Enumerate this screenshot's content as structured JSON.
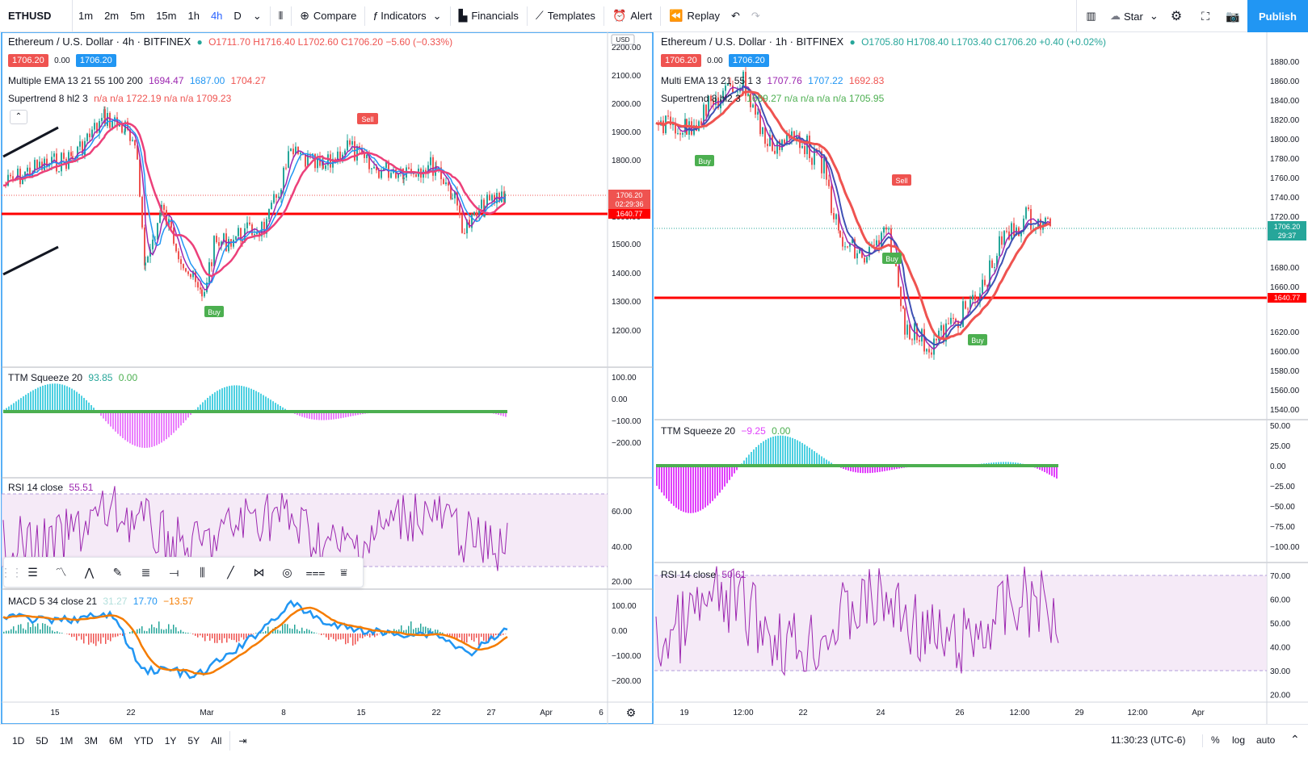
{
  "toolbar": {
    "symbol": "ETHUSD",
    "intervals": [
      "1m",
      "2m",
      "5m",
      "15m",
      "1h",
      "4h",
      "D"
    ],
    "active_interval": "4h",
    "compare": "Compare",
    "indicators": "Indicators",
    "financials": "Financials",
    "templates": "Templates",
    "alert": "Alert",
    "replay": "Replay",
    "layout_name": "Star",
    "publish": "Publish"
  },
  "left_chart": {
    "title": "Ethereum / U.S. Dollar · 4h · BITFINEX",
    "ohlc": "O1711.70 H1716.40 L1702.60 C1706.20 −5.60 (−0.33%)",
    "bid": "1706.20",
    "spread": "0.00",
    "ask": "1706.20",
    "ema_legend": "Multiple EMA 13 21 55 100 200",
    "ema_values": [
      "1694.47",
      "1687.00",
      "1704.27"
    ],
    "supertrend_legend": "Supertrend 8 hl2 3",
    "supertrend_values": "n/a n/a 1722.19 n/a n/a 1709.23",
    "currency": "USD",
    "price_axis": [
      "2200.00",
      "2100.00",
      "2000.00",
      "1900.00",
      "1800.00",
      "1706.20",
      "02:29:36",
      "1640.77",
      "1600.00",
      "1500.00",
      "1400.00",
      "1300.00",
      "1200.00"
    ],
    "ttm_legend": "TTM Squeeze 20",
    "ttm_values": [
      "93.85",
      "0.00"
    ],
    "ttm_axis": [
      "100.00",
      "0.00",
      "−100.00",
      "−200.00"
    ],
    "rsi_legend": "RSI 14 close",
    "rsi_value": "55.51",
    "rsi_axis": [
      "60.00",
      "40.00",
      "20.00"
    ],
    "macd_legend": "MACD 5 34 close 21",
    "macd_values": [
      "31.27",
      "17.70",
      "−13.57"
    ],
    "macd_axis": [
      "100.00",
      "0.00",
      "−100.00",
      "−200.00"
    ],
    "time_axis": [
      "15",
      "22",
      "Mar",
      "8",
      "15",
      "22",
      "27",
      "Apr",
      "6"
    ],
    "annotations": [
      "Sell",
      "Buy"
    ]
  },
  "right_chart": {
    "title": "Ethereum / U.S. Dollar · 1h · BITFINEX",
    "ohlc": "O1705.80 H1708.40 L1703.40 C1706.20 +0.40 (+0.02%)",
    "bid": "1706.20",
    "spread": "0.00",
    "ask": "1706.20",
    "ema_legend": "Multi EMA 13 21 55 1 3",
    "ema_values": [
      "1707.76",
      "1707.22",
      "1692.83"
    ],
    "supertrend_legend": "Supertrend 8 hl2 3",
    "supertrend_values": "1689.27 n/a n/a n/a n/a 1705.95",
    "price_axis": [
      "1880.00",
      "1860.00",
      "1840.00",
      "1820.00",
      "1800.00",
      "1780.00",
      "1760.00",
      "1740.00",
      "1720.00",
      "1706.20",
      "29:37",
      "1680.00",
      "1660.00",
      "1640.77",
      "1620.00",
      "1600.00",
      "1580.00",
      "1560.00",
      "1540.00"
    ],
    "ttm_legend": "TTM Squeeze 20",
    "ttm_values": [
      "−9.25",
      "0.00"
    ],
    "ttm_axis": [
      "50.00",
      "25.00",
      "0.00",
      "−25.00",
      "−50.00",
      "−75.00",
      "−100.00"
    ],
    "rsi_legend": "RSI 14 close",
    "rsi_value": "50.61",
    "rsi_axis": [
      "70.00",
      "60.00",
      "50.00",
      "40.00",
      "30.00",
      "20.00"
    ],
    "time_axis": [
      "19",
      "12:00",
      "22",
      "24",
      "26",
      "12:00",
      "29",
      "12:00",
      "Apr"
    ],
    "annotations": [
      "Sell",
      "Buy",
      "Buy",
      "Buy"
    ]
  },
  "bottombar": {
    "ranges": [
      "1D",
      "5D",
      "1M",
      "3M",
      "6M",
      "YTD",
      "1Y",
      "5Y",
      "All"
    ],
    "clock": "11:30:23 (UTC-6)",
    "percent": "%",
    "log": "log",
    "auto": "auto"
  },
  "colors": {
    "accent": "#2196f3",
    "red_level": "#ff0000",
    "ema_fast": "#3f51b5",
    "ema_slow": "#ef5350",
    "supertrend_up": "#4caf50",
    "rsi": "#9c27b0",
    "ttm_pos": "#4dd0e1",
    "ttm_neg": "#e040fb",
    "macd": "#2196f3",
    "signal": "#f57c00"
  }
}
